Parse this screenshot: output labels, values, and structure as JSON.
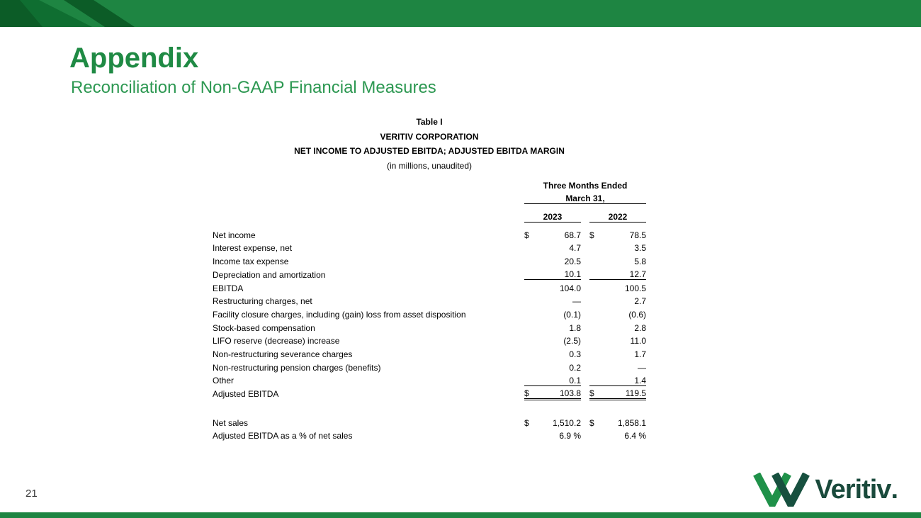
{
  "slide": {
    "title": "Appendix",
    "subtitle": "Reconciliation of Non-GAAP Financial Measures",
    "page_number": "21"
  },
  "table": {
    "caption": [
      "Table I",
      "VERITIV CORPORATION",
      "NET INCOME TO ADJUSTED EBITDA; ADJUSTED EBITDA MARGIN",
      "(in millions, unaudited)"
    ],
    "period": [
      "Three Months Ended",
      "March 31,"
    ],
    "years": [
      "2023",
      "2022"
    ],
    "rows": [
      {
        "label": "Net income",
        "d1": "$",
        "v1": "68.7",
        "d2": "$",
        "v2": "78.5"
      },
      {
        "label": "Interest expense, net",
        "v1": "4.7",
        "v2": "3.5"
      },
      {
        "label": "Income tax expense",
        "v1": "20.5",
        "v2": "5.8"
      },
      {
        "label": "Depreciation and amortization",
        "v1": "10.1",
        "v2": "12.7",
        "underline": "single"
      },
      {
        "label": "EBITDA",
        "v1": "104.0",
        "v2": "100.5"
      },
      {
        "label": "Restructuring charges, net",
        "v1": "—",
        "v2": "2.7"
      },
      {
        "label": "Facility closure charges, including (gain) loss from asset disposition",
        "v1": "(0.1)",
        "v2": "(0.6)"
      },
      {
        "label": "Stock-based compensation",
        "v1": "1.8",
        "v2": "2.8"
      },
      {
        "label": "LIFO reserve (decrease) increase",
        "v1": "(2.5)",
        "v2": "11.0"
      },
      {
        "label": "Non-restructuring severance charges",
        "v1": "0.3",
        "v2": "1.7"
      },
      {
        "label": "Non-restructuring pension charges (benefits)",
        "v1": "0.2",
        "v2": "—"
      },
      {
        "label": "Other",
        "v1": "0.1",
        "v2": "1.4",
        "underline": "single"
      },
      {
        "label": "Adjusted EBITDA",
        "d1": "$",
        "v1": "103.8",
        "d2": "$",
        "v2": "119.5",
        "underline": "double"
      },
      {
        "spacer": true
      },
      {
        "label": "Net sales",
        "d1": "$",
        "v1": "1,510.2",
        "d2": "$",
        "v2": "1,858.1"
      },
      {
        "label": "Adjusted EBITDA as a % of net sales",
        "v1": "6.9 %",
        "v2": "6.4 %"
      }
    ]
  },
  "logo": {
    "text": "Veritiv",
    "mark": "."
  },
  "colors": {
    "brand_green": "#1E8542",
    "dark_green": "#0C5C27",
    "mid_green": "#0F6E31",
    "title_green": "#1F8A44",
    "subtitle_green": "#2D9852",
    "logo_text_green": "#1A4A3C"
  }
}
